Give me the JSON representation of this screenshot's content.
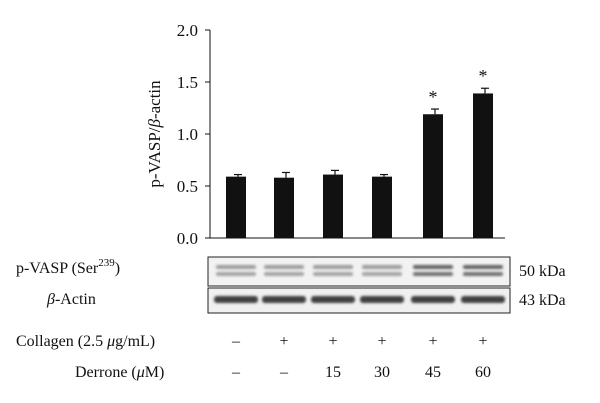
{
  "chart_data": {
    "type": "bar",
    "ylabel_prefix": "p-VASP/",
    "ylabel_italic": "β",
    "ylabel_suffix": "-actin",
    "ylim": [
      0,
      2.0
    ],
    "yticks": [
      "0.0",
      "0.5",
      "1.0",
      "1.5",
      "2.0"
    ],
    "ytick_values": [
      0,
      0.5,
      1.0,
      1.5,
      2.0
    ],
    "values": [
      0.59,
      0.58,
      0.61,
      0.59,
      1.19,
      1.39
    ],
    "errors": [
      0.02,
      0.05,
      0.04,
      0.02,
      0.05,
      0.05
    ],
    "significance": [
      "",
      "",
      "",
      "",
      "*",
      "*"
    ],
    "bar_color": "#111111"
  },
  "blot": {
    "row1_label_main": "p-VASP (Ser",
    "row1_label_sup": "239",
    "row1_label_end": ")",
    "row1_size": "50 kDa",
    "row2_label_italic": "β",
    "row2_label_rest": "-Actin",
    "row2_size": "43 kDa"
  },
  "conditions": {
    "collagen_label_main": "Collagen (2.5 ",
    "collagen_label_italic": "μ",
    "collagen_label_end": "g/mL)",
    "collagen": [
      "–",
      "+",
      "+",
      "+",
      "+",
      "+"
    ],
    "derrone_label_main": "Derrone (",
    "derrone_label_italic": "μ",
    "derrone_label_end": "M)",
    "derrone": [
      "–",
      "–",
      "15",
      "30",
      "45",
      "60"
    ]
  }
}
